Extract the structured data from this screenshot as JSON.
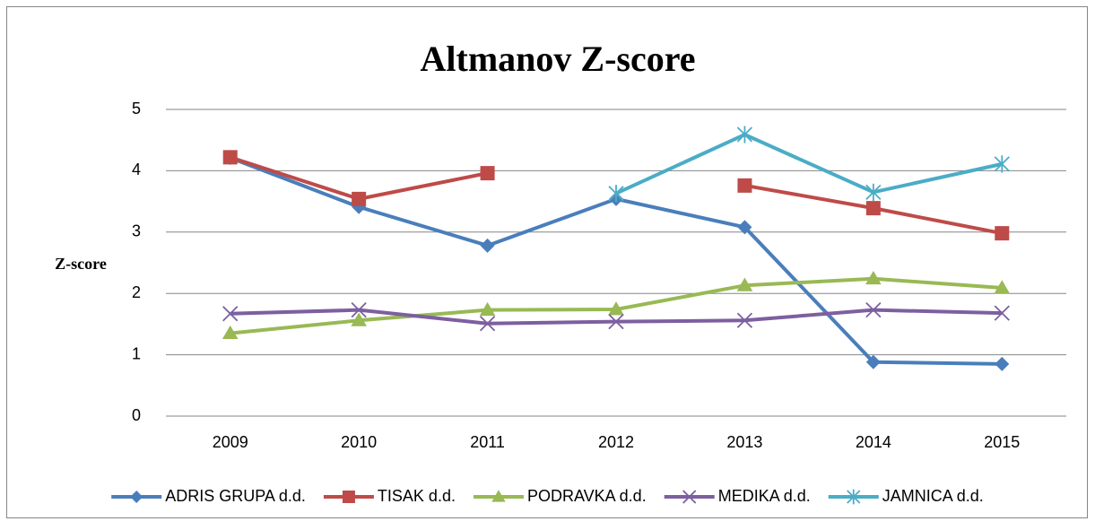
{
  "chart_data": {
    "type": "line",
    "title": "Altmanov Z-score",
    "y_label": "Z-score",
    "categories": [
      "2009",
      "2010",
      "2011",
      "2012",
      "2013",
      "2014",
      "2015"
    ],
    "series": [
      {
        "name": "ADRIS GRUPA d.d.",
        "color": "#4a7ebb",
        "marker": "diamond",
        "values": [
          4.21,
          3.41,
          2.78,
          3.54,
          3.08,
          0.88,
          0.85
        ]
      },
      {
        "name": "TISAK d.d.",
        "color": "#be4b48",
        "marker": "square",
        "values": [
          4.22,
          3.54,
          3.96,
          null,
          3.76,
          3.39,
          2.98
        ]
      },
      {
        "name": "PODRAVKA d.d.",
        "color": "#98b954",
        "marker": "triangle",
        "values": [
          1.35,
          1.56,
          1.73,
          1.74,
          2.13,
          2.24,
          2.09
        ]
      },
      {
        "name": "MEDIKA d.d.",
        "color": "#7d5fa0",
        "marker": "x",
        "values": [
          1.67,
          1.73,
          1.51,
          1.54,
          1.56,
          1.73,
          1.68
        ]
      },
      {
        "name": "JAMNICA d.d.",
        "color": "#4bacc6",
        "marker": "star",
        "values": [
          null,
          null,
          null,
          3.63,
          4.59,
          3.65,
          4.11
        ]
      }
    ],
    "ylim": [
      0,
      5
    ],
    "yticks": [
      0,
      1,
      2,
      3,
      4,
      5
    ],
    "grid": true,
    "legend": "bottom"
  }
}
